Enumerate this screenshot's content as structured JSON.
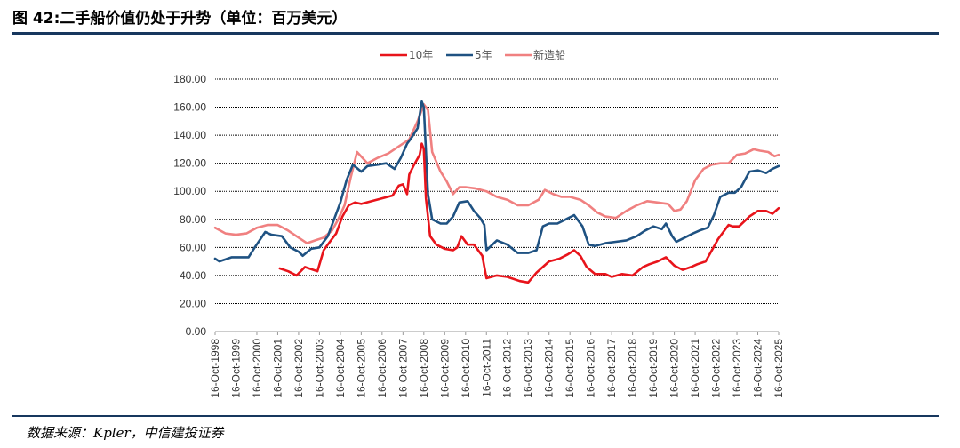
{
  "figure": {
    "title": "图 42:二手船价值仍处于升势（单位：百万美元）",
    "source": "数据来源：Kpler，中信建投证券"
  },
  "chart_data": {
    "type": "line",
    "title": "",
    "xlabel": "",
    "ylabel": "",
    "ylim": [
      0,
      180
    ],
    "yticks": [
      "0.00",
      "20.00",
      "40.00",
      "60.00",
      "80.00",
      "100.00",
      "120.00",
      "140.00",
      "160.00",
      "180.00"
    ],
    "xticks": [
      "16-Oct-1998",
      "16-Oct-1999",
      "16-Oct-2000",
      "16-Oct-2001",
      "16-Oct-2002",
      "16-Oct-2003",
      "16-Oct-2004",
      "16-Oct-2005",
      "16-Oct-2006",
      "16-Oct-2007",
      "16-Oct-2008",
      "16-Oct-2009",
      "16-Oct-2010",
      "16-Oct-2011",
      "16-Oct-2012",
      "16-Oct-2013",
      "16-Oct-2014",
      "16-Oct-2015",
      "16-Oct-2016",
      "16-Oct-2017",
      "16-Oct-2018",
      "16-Oct-2019",
      "16-Oct-2020",
      "16-Oct-2021",
      "16-Oct-2022",
      "16-Oct-2023",
      "16-Oct-2024",
      "16-Oct-2025"
    ],
    "grid": true,
    "legend_position": "top-center",
    "series": [
      {
        "name": "10年",
        "color": "#e8141b",
        "x": [
          2001.1,
          2001.5,
          2001.9,
          2002.3,
          2002.5,
          2002.9,
          2003.2,
          2003.5,
          2003.8,
          2004.1,
          2004.4,
          2004.7,
          2005.0,
          2005.5,
          2006.0,
          2006.5,
          2006.8,
          2007.0,
          2007.2,
          2007.3,
          2007.5,
          2007.8,
          2007.9,
          2008.0,
          2008.1,
          2008.3,
          2008.6,
          2009.0,
          2009.4,
          2009.6,
          2009.8,
          2010.1,
          2010.4,
          2010.8,
          2010.9,
          2011.0,
          2011.5,
          2012.0,
          2012.6,
          2013.0,
          2013.4,
          2013.7,
          2014.0,
          2014.5,
          2014.9,
          2015.2,
          2015.5,
          2015.8,
          2016.2,
          2016.7,
          2017.0,
          2017.5,
          2018.0,
          2018.5,
          2018.8,
          2019.2,
          2019.6,
          2020.0,
          2020.4,
          2020.8,
          2021.1,
          2021.5,
          2021.8,
          2022.1,
          2022.6,
          2022.8,
          2023.1,
          2023.6,
          2024.0,
          2024.4,
          2024.7,
          2025.0
        ],
        "values": [
          45,
          43,
          40,
          46,
          45,
          43,
          58,
          64,
          70,
          82,
          90,
          92,
          91,
          93,
          95,
          97,
          104,
          105,
          98,
          112,
          118,
          126,
          134,
          130,
          95,
          68,
          62,
          59,
          58,
          60,
          68,
          62,
          62,
          54,
          46,
          38,
          40,
          39,
          36,
          35,
          42,
          46,
          50,
          52,
          55,
          58,
          54,
          46,
          41,
          41,
          39,
          41,
          40,
          46,
          48,
          50,
          53,
          47,
          44,
          46,
          48,
          50,
          58,
          66,
          76,
          75,
          75,
          82,
          86,
          86,
          84,
          88
        ]
      },
      {
        "name": "5年",
        "color": "#1f5282",
        "x": [
          1998.0,
          1998.2,
          1998.8,
          1999.3,
          1999.6,
          1999.9,
          2000.4,
          2000.7,
          2001.2,
          2001.6,
          2002.0,
          2002.2,
          2002.6,
          2003.0,
          2003.4,
          2003.7,
          2004.0,
          2004.3,
          2004.6,
          2005.0,
          2005.3,
          2005.8,
          2006.2,
          2006.6,
          2006.9,
          2007.2,
          2007.4,
          2007.7,
          2007.9,
          2008.0,
          2008.2,
          2008.4,
          2008.8,
          2009.1,
          2009.4,
          2009.7,
          2010.1,
          2010.4,
          2010.7,
          2010.9,
          2011.0,
          2011.5,
          2012.0,
          2012.5,
          2013.0,
          2013.4,
          2013.7,
          2014.0,
          2014.4,
          2014.8,
          2015.2,
          2015.6,
          2015.9,
          2016.2,
          2016.7,
          2017.2,
          2017.7,
          2018.2,
          2018.6,
          2019.0,
          2019.4,
          2019.6,
          2019.9,
          2020.1,
          2020.5,
          2020.9,
          2021.2,
          2021.6,
          2021.9,
          2022.2,
          2022.6,
          2022.9,
          2023.2,
          2023.6,
          2024.0,
          2024.4,
          2024.7,
          2025.0
        ],
        "values": [
          52,
          50,
          53,
          53,
          53,
          60,
          71,
          69,
          68,
          60,
          57,
          54,
          59,
          60,
          68,
          80,
          92,
          108,
          119,
          114,
          118,
          119,
          120,
          116,
          124,
          134,
          138,
          145,
          164,
          160,
          98,
          80,
          77,
          77,
          82,
          92,
          93,
          86,
          81,
          76,
          58,
          65,
          62,
          56,
          56,
          58,
          75,
          77,
          77,
          80,
          83,
          75,
          62,
          61,
          63,
          64,
          65,
          68,
          72,
          75,
          73,
          77,
          68,
          64,
          67,
          70,
          72,
          74,
          83,
          96,
          99,
          99,
          103,
          114,
          115,
          113,
          116,
          118
        ]
      },
      {
        "name": "新造船",
        "color": "#f08080",
        "x": [
          1998.0,
          1998.5,
          1999.0,
          1999.5,
          2000.0,
          2000.5,
          2001.0,
          2001.5,
          2002.0,
          2002.4,
          2002.8,
          2003.2,
          2003.6,
          2003.9,
          2004.2,
          2004.5,
          2004.8,
          2005.3,
          2005.8,
          2006.3,
          2006.8,
          2007.3,
          2007.7,
          2008.0,
          2008.2,
          2008.4,
          2008.8,
          2009.1,
          2009.4,
          2009.7,
          2010.0,
          2010.5,
          2011.0,
          2011.5,
          2012.0,
          2012.5,
          2013.0,
          2013.5,
          2013.8,
          2014.2,
          2014.6,
          2015.0,
          2015.5,
          2015.9,
          2016.3,
          2016.7,
          2017.2,
          2017.7,
          2018.2,
          2018.7,
          2019.2,
          2019.7,
          2020.0,
          2020.3,
          2020.6,
          2021.0,
          2021.4,
          2021.8,
          2022.2,
          2022.6,
          2023.0,
          2023.4,
          2023.8,
          2024.1,
          2024.5,
          2024.8,
          2025.0
        ],
        "values": [
          74,
          70,
          69,
          70,
          74,
          76,
          76,
          72,
          67,
          63,
          65,
          67,
          72,
          80,
          90,
          110,
          128,
          120,
          124,
          127,
          132,
          137,
          150,
          162,
          158,
          128,
          114,
          107,
          98,
          103,
          103,
          102,
          100,
          96,
          94,
          90,
          90,
          94,
          101,
          98,
          96,
          96,
          94,
          90,
          85,
          82,
          81,
          86,
          90,
          93,
          92,
          91,
          86,
          87,
          93,
          108,
          116,
          119,
          120,
          120,
          126,
          127,
          130,
          129,
          128,
          125,
          126
        ]
      }
    ]
  }
}
